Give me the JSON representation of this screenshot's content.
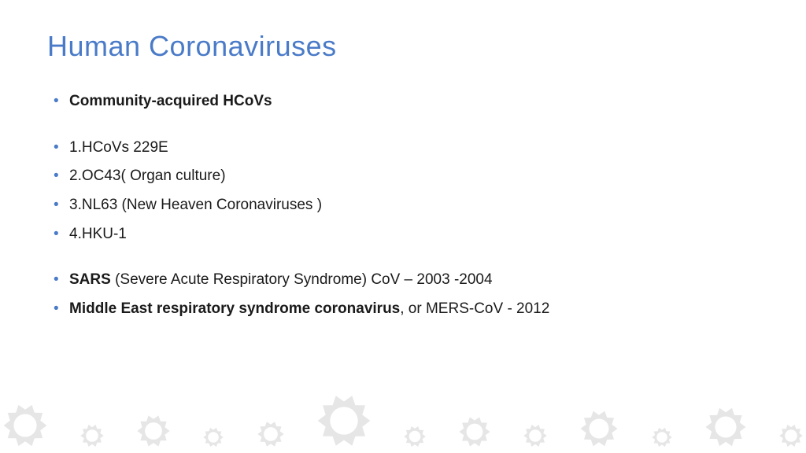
{
  "colors": {
    "title": "#4a7bc8",
    "bullet_marker": "#4a7bc8",
    "body_text": "#1a1a1a",
    "decor_fill": "#e6e6e6",
    "background": "#ffffff"
  },
  "typography": {
    "title_fontsize": 36,
    "title_weight": 400,
    "body_fontsize": 19,
    "font_family": "Arial"
  },
  "slide": {
    "title": "Human  Coronaviruses",
    "bullets": [
      {
        "bold": "Community-acquired HCoVs",
        "rest": ""
      },
      {
        "spacer": true
      },
      {
        "bold": "",
        "rest": "1.HCoVs 229E"
      },
      {
        "bold": "",
        "rest": "2.OC43( Organ culture)"
      },
      {
        "bold": "",
        "rest": "3.NL63 (New Heaven Coronaviruses )"
      },
      {
        "bold": "",
        "rest": "4.HKU-1"
      },
      {
        "spacer": true
      },
      {
        "bold": "SARS",
        "rest": " (Severe Acute Respiratory Syndrome) CoV – 2003 -2004"
      },
      {
        "bold": "Middle East respiratory syndrome coronavirus",
        "rest": ", or MERS-CoV - 2012"
      }
    ]
  },
  "decor": {
    "icon_type": "virus-outline",
    "fill": "#e6e6e6",
    "sizes": [
      56,
      30,
      42,
      26,
      34,
      68,
      28,
      40,
      30,
      48,
      26,
      52,
      30
    ]
  }
}
